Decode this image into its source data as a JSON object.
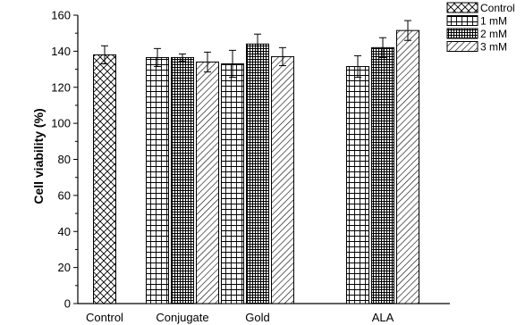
{
  "chart_data": {
    "type": "bar",
    "ylabel": "Cell viability (%)",
    "xlabel": "",
    "ylim": [
      0,
      160
    ],
    "y_ticks": [
      0,
      20,
      40,
      60,
      80,
      100,
      120,
      140,
      160
    ],
    "grid": false,
    "legend_position": "top-right",
    "groups": [
      {
        "label": "Control",
        "bars": [
          {
            "series": "Control",
            "value": 138,
            "error": 5
          }
        ]
      },
      {
        "label": "Conjugate",
        "bars": [
          {
            "series": "1 mM",
            "value": 136.5,
            "error": 5
          },
          {
            "series": "2 mM",
            "value": 136.5,
            "error": 2
          },
          {
            "series": "3 mM",
            "value": 134,
            "error": 5.5
          }
        ]
      },
      {
        "label": "Gold",
        "bars": [
          {
            "series": "1 mM",
            "value": 133,
            "error": 7.5
          },
          {
            "series": "2 mM",
            "value": 144,
            "error": 5.5
          },
          {
            "series": "3 mM",
            "value": 137,
            "error": 5
          }
        ]
      },
      {
        "label": "ALA",
        "bars": [
          {
            "series": "1 mM",
            "value": 131.5,
            "error": 6
          },
          {
            "series": "2 mM",
            "value": 142,
            "error": 5.5
          },
          {
            "series": "3 mM",
            "value": 151.5,
            "error": 5.5
          }
        ]
      }
    ],
    "legend": [
      {
        "name": "Control",
        "pattern": "crosshatch"
      },
      {
        "name": "1 mM",
        "pattern": "grid"
      },
      {
        "name": "2 mM",
        "pattern": "dense-grid"
      },
      {
        "name": "3 mM",
        "pattern": "diagonal"
      }
    ]
  }
}
